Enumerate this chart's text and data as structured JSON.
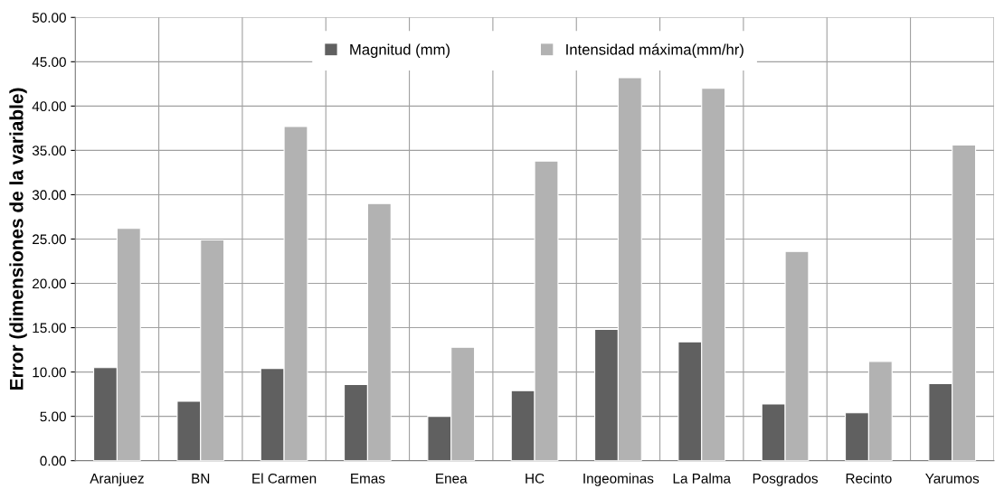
{
  "chart_data": {
    "type": "bar",
    "ylabel": "Error (dimensiones de la variable)",
    "categories": [
      "Aranjuez",
      "BN",
      "El Carmen",
      "Emas",
      "Enea",
      "HC",
      "Ingeominas",
      "La Palma",
      "Posgrados",
      "Recinto",
      "Yarumos"
    ],
    "series": [
      {
        "name": "Magnitud (mm)",
        "color": "#606060",
        "values": [
          10.5,
          6.7,
          10.4,
          8.6,
          5.0,
          7.9,
          14.8,
          13.4,
          6.4,
          5.4,
          8.7
        ]
      },
      {
        "name": "Intensidad máxima(mm/hr)",
        "color": "#b2b2b2",
        "values": [
          26.2,
          24.9,
          37.7,
          29.0,
          12.8,
          33.8,
          43.2,
          42.0,
          23.6,
          11.2,
          35.6
        ]
      }
    ],
    "ylim": [
      0,
      50
    ],
    "yticks": [
      {
        "value": 0,
        "label": "0.00"
      },
      {
        "value": 5,
        "label": "5.00"
      },
      {
        "value": 10,
        "label": "10.00"
      },
      {
        "value": 15,
        "label": "15.00"
      },
      {
        "value": 20,
        "label": "20.00"
      },
      {
        "value": 25,
        "label": "25.00"
      },
      {
        "value": 30,
        "label": "30.00"
      },
      {
        "value": 35,
        "label": "35.00"
      },
      {
        "value": 40,
        "label": "40.00"
      },
      {
        "value": 45,
        "label": "45.00"
      },
      {
        "value": 50,
        "label": "50.00"
      }
    ],
    "grid": true,
    "legend": "top"
  }
}
